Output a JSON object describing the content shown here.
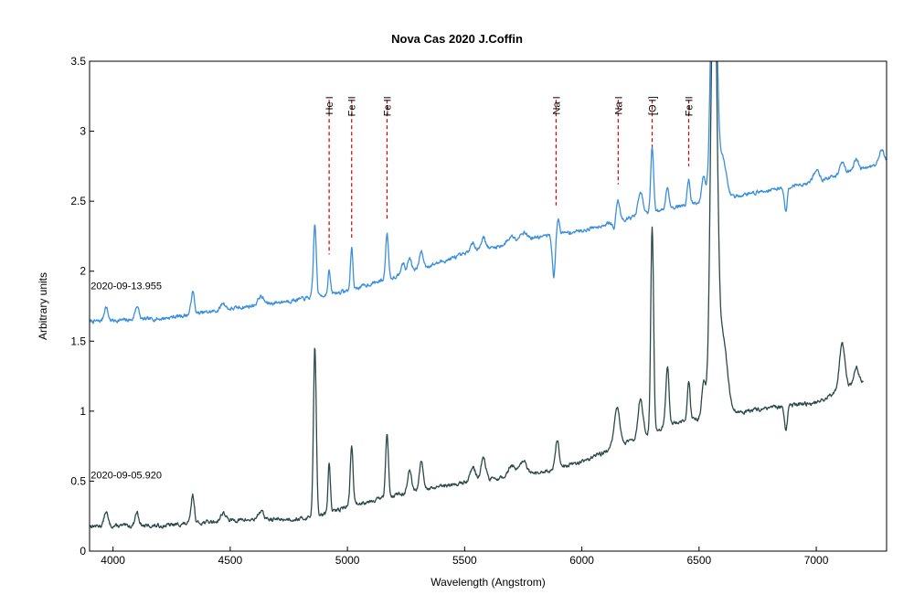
{
  "chart_data": {
    "type": "line",
    "title": "Nova Cas 2020   J.Coffin",
    "xlabel": "Wavelength (Angstrom)",
    "ylabel": "Arbitrary units",
    "xlim": [
      3900,
      7300
    ],
    "ylim": [
      0,
      3.5
    ],
    "xticks": [
      "4000",
      "4500",
      "5000",
      "5500",
      "6000",
      "6500",
      "7000"
    ],
    "xtick_values": [
      4000,
      4500,
      5000,
      5500,
      6000,
      6500,
      7000
    ],
    "yticks": [
      "0",
      "0.5",
      "1",
      "1.5",
      "2",
      "2.5",
      "3",
      "3.5"
    ],
    "ytick_values": [
      0,
      0.5,
      1,
      1.5,
      2,
      2.5,
      3,
      3.5
    ],
    "grid": false,
    "annotations": [
      {
        "label": "He I",
        "x": 4922,
        "y_top": 3.25,
        "y_bottom": 2.12
      },
      {
        "label": "Fe II",
        "x": 5018,
        "y_top": 3.25,
        "y_bottom": 2.24
      },
      {
        "label": "Fe II",
        "x": 5169,
        "y_top": 3.25,
        "y_bottom": 2.36
      },
      {
        "label": "Na I",
        "x": 5890,
        "y_top": 3.25,
        "y_bottom": 2.47
      },
      {
        "label": "Na I",
        "x": 6155,
        "y_top": 3.25,
        "y_bottom": 2.62
      },
      {
        "label": "[O I]",
        "x": 6300,
        "y_top": 3.25,
        "y_bottom": 2.84
      },
      {
        "label": "Fe II",
        "x": 6456,
        "y_top": 3.25,
        "y_bottom": 2.75
      }
    ],
    "series": [
      {
        "name": "2020-09-13.955",
        "color": "#3a8fdc",
        "label_pos": {
          "x": 3905,
          "y": 1.87
        },
        "continuum": [
          [
            3900,
            1.64
          ],
          [
            4200,
            1.66
          ],
          [
            4500,
            1.73
          ],
          [
            4800,
            1.8
          ],
          [
            5000,
            1.86
          ],
          [
            5200,
            1.96
          ],
          [
            5500,
            2.12
          ],
          [
            5800,
            2.24
          ],
          [
            6000,
            2.29
          ],
          [
            6200,
            2.38
          ],
          [
            6400,
            2.46
          ],
          [
            6700,
            2.55
          ],
          [
            7000,
            2.64
          ],
          [
            7300,
            2.78
          ]
        ],
        "features": [
          [
            3970,
            0.1,
            8
          ],
          [
            4102,
            0.1,
            8
          ],
          [
            4340,
            0.16,
            7
          ],
          [
            4470,
            0.05,
            10
          ],
          [
            4630,
            0.06,
            12
          ],
          [
            4861,
            0.52,
            6
          ],
          [
            4922,
            0.17,
            5
          ],
          [
            5018,
            0.3,
            5
          ],
          [
            5169,
            0.33,
            6
          ],
          [
            5235,
            0.08,
            8
          ],
          [
            5265,
            0.1,
            8
          ],
          [
            5315,
            0.12,
            8
          ],
          [
            5535,
            0.06,
            12
          ],
          [
            5580,
            0.09,
            10
          ],
          [
            5700,
            0.05,
            15
          ],
          [
            5750,
            0.06,
            15
          ],
          [
            5900,
            0.1,
            6
          ],
          [
            5880,
            -0.3,
            6
          ],
          [
            6150,
            0.18,
            10
          ],
          [
            6140,
            -0.14,
            7
          ],
          [
            6250,
            0.16,
            10
          ],
          [
            6300,
            0.46,
            6
          ],
          [
            6365,
            0.15,
            7
          ],
          [
            6456,
            0.18,
            6
          ],
          [
            6520,
            0.18,
            8
          ],
          [
            6563,
            2.2,
            12
          ],
          [
            6600,
            0.3,
            15
          ],
          [
            6870,
            -0.18,
            6
          ],
          [
            7000,
            0.08,
            12
          ],
          [
            7110,
            0.1,
            10
          ],
          [
            7170,
            0.08,
            10
          ],
          [
            7280,
            0.1,
            10
          ]
        ],
        "noise": 0.025,
        "seed": 7
      },
      {
        "name": "2020-09-05.920",
        "color": "#2a4a48",
        "label_pos": {
          "x": 3905,
          "y": 0.52
        },
        "continuum": [
          [
            3900,
            0.18
          ],
          [
            4200,
            0.18
          ],
          [
            4500,
            0.22
          ],
          [
            4800,
            0.23
          ],
          [
            4900,
            0.26
          ],
          [
            5000,
            0.32
          ],
          [
            5200,
            0.4
          ],
          [
            5500,
            0.49
          ],
          [
            5800,
            0.55
          ],
          [
            6000,
            0.64
          ],
          [
            6200,
            0.78
          ],
          [
            6400,
            0.92
          ],
          [
            6700,
            1.0
          ],
          [
            7000,
            1.06
          ],
          [
            7200,
            1.22
          ]
        ],
        "features": [
          [
            3970,
            0.1,
            8
          ],
          [
            4102,
            0.1,
            8
          ],
          [
            4340,
            0.2,
            7
          ],
          [
            4470,
            0.06,
            10
          ],
          [
            4630,
            0.06,
            12
          ],
          [
            4861,
            1.22,
            6
          ],
          [
            4922,
            0.36,
            5
          ],
          [
            5018,
            0.42,
            6
          ],
          [
            5169,
            0.45,
            6
          ],
          [
            5265,
            0.15,
            8
          ],
          [
            5315,
            0.2,
            8
          ],
          [
            5535,
            0.1,
            12
          ],
          [
            5580,
            0.16,
            10
          ],
          [
            5700,
            0.08,
            15
          ],
          [
            5750,
            0.1,
            15
          ],
          [
            5895,
            0.2,
            8
          ],
          [
            6150,
            0.28,
            12
          ],
          [
            6250,
            0.28,
            10
          ],
          [
            6300,
            1.48,
            6
          ],
          [
            6365,
            0.42,
            7
          ],
          [
            6456,
            0.28,
            6
          ],
          [
            6520,
            0.25,
            8
          ],
          [
            6563,
            3.4,
            13
          ],
          [
            6600,
            0.55,
            20
          ],
          [
            6870,
            -0.18,
            6
          ],
          [
            7110,
            0.33,
            12
          ],
          [
            7170,
            0.12,
            10
          ]
        ],
        "noise": 0.025,
        "seed": 13
      }
    ]
  }
}
